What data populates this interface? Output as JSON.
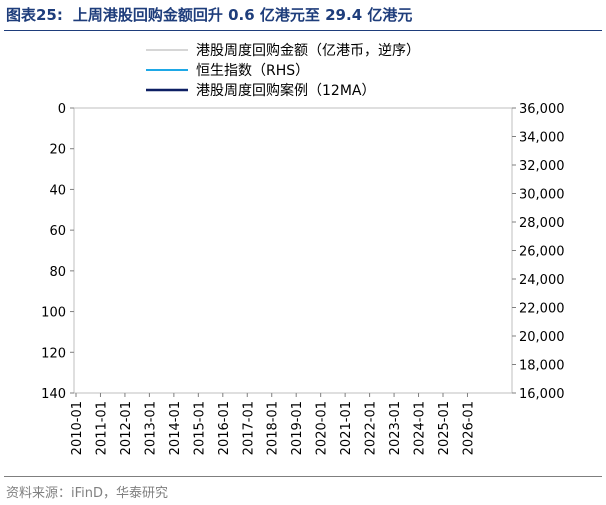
{
  "figure": {
    "number_label": "图表25:",
    "title": "上周港股回购金额回升 0.6 亿港元至 29.4 亿港元",
    "source": "资料来源：iFinD，华泰研究"
  },
  "colors": {
    "title": "#1e3d7b",
    "weekly_buyback": "#d6d6d6",
    "hsi": "#1ea8e6",
    "buyback_12ma": "#0d1f63"
  },
  "chart_data": {
    "type": "line",
    "x_ticks": [
      "2010-01",
      "2011-01",
      "2012-01",
      "2013-01",
      "2014-01",
      "2015-01",
      "2016-01",
      "2017-01",
      "2018-01",
      "2019-01",
      "2020-01",
      "2021-01",
      "2022-01",
      "2023-01",
      "2024-01",
      "2025-01",
      "2026-01"
    ],
    "y_left": {
      "ticks": [
        "0",
        "20",
        "40",
        "60",
        "80",
        "100",
        "120",
        "140"
      ],
      "range": [
        0,
        140
      ],
      "inverted": true
    },
    "y_right": {
      "ticks": [
        "16,000",
        "18,000",
        "20,000",
        "22,000",
        "24,000",
        "26,000",
        "28,000",
        "30,000",
        "32,000",
        "34,000",
        "36,000"
      ],
      "range": [
        16000,
        36000
      ]
    },
    "legend": {
      "position": "top-center"
    },
    "series": [
      {
        "name": "港股周度回购金额（亿港币，逆序）",
        "axis": "left",
        "style": "thin-gray"
      },
      {
        "name": "恒生指数（RHS）",
        "axis": "right",
        "style": "light-blue"
      },
      {
        "name": "港股周度回购案例（12MA）",
        "axis": "left",
        "style": "dark-navy"
      }
    ]
  }
}
